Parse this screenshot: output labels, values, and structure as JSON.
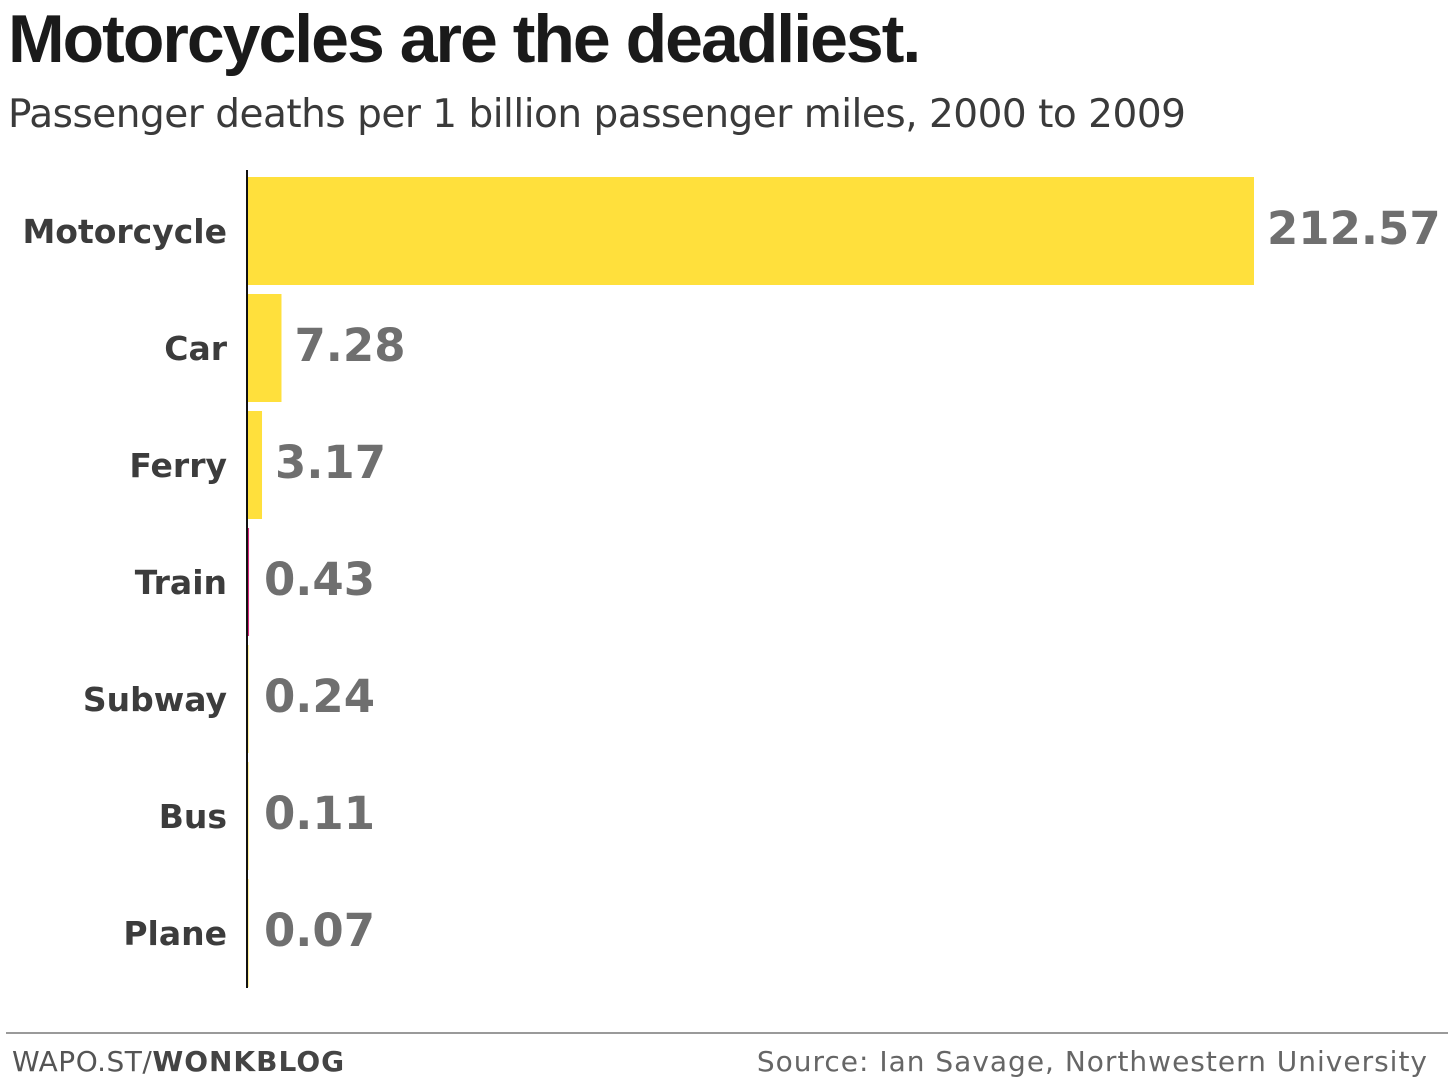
{
  "header": {
    "title": "Motorcycles are the deadliest.",
    "subtitle": "Passenger deaths per 1 billion passenger miles, 2000 to 2009"
  },
  "footer": {
    "credit_prefix": "WAPO.ST/",
    "credit_bold": "WONKBLOG",
    "source": "Source: Ian Savage, Northwestern University"
  },
  "chart_data": {
    "type": "bar",
    "orientation": "horizontal",
    "categories": [
      "Motorcycle",
      "Car",
      "Ferry",
      "Train",
      "Subway",
      "Bus",
      "Plane"
    ],
    "values": [
      212.57,
      7.28,
      3.17,
      0.43,
      0.24,
      0.11,
      0.07
    ],
    "value_labels": [
      "212.57",
      "7.28",
      "3.17",
      "0.43",
      "0.24",
      "0.11",
      "0.07"
    ],
    "title": "Motorcycles are the deadliest.",
    "subtitle": "Passenger deaths per 1 billion passenger miles, 2000 to 2009",
    "xlim": [
      0,
      212.57
    ],
    "grid": false,
    "bar_color": "#ffe03c",
    "highlight_color": "#d6247a",
    "axis_color": "#111111",
    "label_color": "#3c3c3c",
    "value_color": "#6f6f6f"
  }
}
